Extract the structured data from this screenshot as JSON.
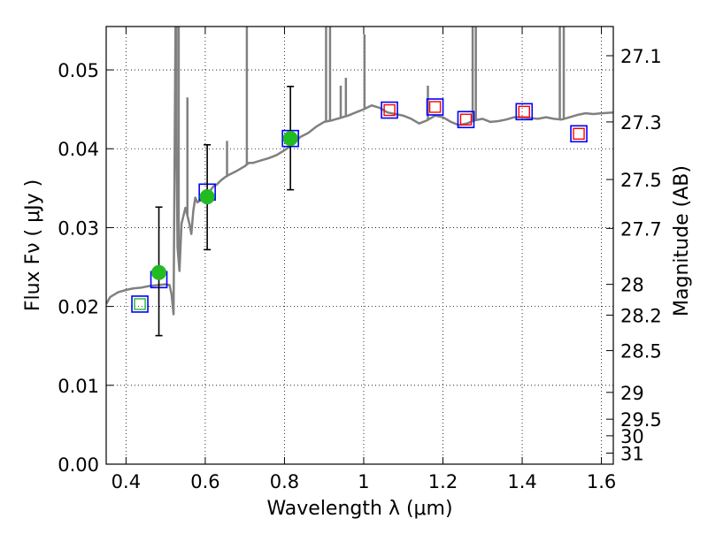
{
  "chart_data": {
    "type": "scatter",
    "title": "",
    "xlabel": "Wavelength  λ (μm)",
    "ylabel": "Flux  Fν  ( μJy )",
    "ylabel_right": "Magnitude (AB)",
    "xlim": [
      0.35,
      1.63
    ],
    "ylim": [
      0.0,
      0.0555
    ],
    "grid": true,
    "x_ticks": [
      0.4,
      0.6,
      0.8,
      1.0,
      1.2,
      1.4,
      1.6
    ],
    "x_tick_labels": [
      "0.4",
      "0.6",
      "0.8",
      "1",
      "1.2",
      "1.4",
      "1.6"
    ],
    "y_ticks": [
      0.0,
      0.01,
      0.02,
      0.03,
      0.04,
      0.05
    ],
    "y_tick_labels": [
      "0.00",
      "0.01",
      "0.02",
      "0.03",
      "0.04",
      "0.05"
    ],
    "mag_ticks": [
      {
        "label": "27.1",
        "flux": 0.0518
      },
      {
        "label": "27.3",
        "flux": 0.0434
      },
      {
        "label": "27.5",
        "flux": 0.0361
      },
      {
        "label": "27.7",
        "flux": 0.0299
      },
      {
        "label": "28",
        "flux": 0.0228
      },
      {
        "label": "28.2",
        "flux": 0.0189
      },
      {
        "label": "28.5",
        "flux": 0.0144
      },
      {
        "label": "29",
        "flux": 0.0091
      },
      {
        "label": "29.5",
        "flux": 0.0057
      },
      {
        "label": "30",
        "flux": 0.0036
      },
      {
        "label": "31",
        "flux": 0.0014
      }
    ],
    "series": [
      {
        "name": "SED template",
        "kind": "line",
        "color": "#808080",
        "x": [
          0.35,
          0.36,
          0.38,
          0.4,
          0.42,
          0.44,
          0.46,
          0.48,
          0.5,
          0.51,
          0.515,
          0.52,
          0.525,
          0.53,
          0.535,
          0.54,
          0.545,
          0.55,
          0.555,
          0.56,
          0.565,
          0.57,
          0.575,
          0.58,
          0.59,
          0.6,
          0.61,
          0.62,
          0.63,
          0.64,
          0.65,
          0.66,
          0.68,
          0.7,
          0.71,
          0.72,
          0.74,
          0.76,
          0.78,
          0.8,
          0.82,
          0.84,
          0.86,
          0.88,
          0.9,
          0.92,
          0.94,
          0.96,
          0.98,
          1.0,
          1.02,
          1.04,
          1.06,
          1.08,
          1.1,
          1.12,
          1.14,
          1.16,
          1.18,
          1.2,
          1.22,
          1.24,
          1.26,
          1.28,
          1.3,
          1.32,
          1.34,
          1.36,
          1.38,
          1.4,
          1.42,
          1.44,
          1.46,
          1.48,
          1.5,
          1.52,
          1.54,
          1.56,
          1.58,
          1.6,
          1.63
        ],
        "y": [
          0.0203,
          0.0212,
          0.0218,
          0.0221,
          0.0223,
          0.0224,
          0.0226,
          0.0227,
          0.0228,
          0.0227,
          0.0215,
          0.019,
          0.0555,
          0.0275,
          0.0245,
          0.0305,
          0.0315,
          0.0325,
          0.0315,
          0.0305,
          0.0292,
          0.0322,
          0.0338,
          0.0332,
          0.0335,
          0.0338,
          0.0345,
          0.0352,
          0.0355,
          0.036,
          0.0364,
          0.0367,
          0.0372,
          0.0378,
          0.0382,
          0.0382,
          0.0385,
          0.0388,
          0.0392,
          0.0398,
          0.0405,
          0.0415,
          0.042,
          0.0428,
          0.0434,
          0.0436,
          0.0439,
          0.0442,
          0.0446,
          0.045,
          0.0455,
          0.0452,
          0.0446,
          0.0444,
          0.0442,
          0.0438,
          0.0432,
          0.0436,
          0.0442,
          0.044,
          0.0434,
          0.043,
          0.0432,
          0.0436,
          0.0438,
          0.0434,
          0.0435,
          0.0437,
          0.044,
          0.044,
          0.0439,
          0.0438,
          0.044,
          0.0438,
          0.0437,
          0.044,
          0.0443,
          0.0445,
          0.0444,
          0.0445,
          0.0446
        ]
      },
      {
        "name": "model (blue squares)",
        "kind": "open-square",
        "color": "#0000ff",
        "x": [
          0.435,
          0.483,
          0.605,
          0.815,
          1.065,
          1.18,
          1.258,
          1.405,
          1.543
        ],
        "y": [
          0.0203,
          0.0234,
          0.0345,
          0.0413,
          0.0449,
          0.0453,
          0.0437,
          0.0447,
          0.0419
        ]
      },
      {
        "name": "observed (red squares)",
        "kind": "open-square",
        "color": "#ff0000",
        "x": [
          1.065,
          1.18,
          1.258,
          1.405,
          1.543
        ],
        "y": [
          0.0449,
          0.0453,
          0.0437,
          0.0447,
          0.0419
        ]
      },
      {
        "name": "observed (green points)",
        "kind": "point-with-error",
        "color": "#22bb22",
        "x": [
          0.483,
          0.605,
          0.815
        ],
        "y": [
          0.0243,
          0.0339,
          0.0413
        ],
        "yerr_low": [
          0.0163,
          0.0272,
          0.0348
        ],
        "yerr_high": [
          0.0326,
          0.0405,
          0.0479
        ]
      },
      {
        "name": "green square",
        "kind": "open-square",
        "color": "#22bb22",
        "x": [
          0.435
        ],
        "y": [
          0.0203
        ]
      }
    ],
    "emission_lines": [
      {
        "x": 0.527,
        "top": 0.0555
      },
      {
        "x": 0.533,
        "top": 0.0555
      },
      {
        "x": 0.555,
        "top": 0.0465
      },
      {
        "x": 0.705,
        "top": 0.0555
      },
      {
        "x": 0.655,
        "top": 0.041
      },
      {
        "x": 0.905,
        "top": 0.0555
      },
      {
        "x": 0.915,
        "top": 0.0555
      },
      {
        "x": 0.942,
        "top": 0.048
      },
      {
        "x": 0.955,
        "top": 0.049
      },
      {
        "x": 1.002,
        "top": 0.0545
      },
      {
        "x": 1.162,
        "top": 0.048
      },
      {
        "x": 1.275,
        "top": 0.0555
      },
      {
        "x": 1.283,
        "top": 0.0555
      },
      {
        "x": 1.495,
        "top": 0.0555
      },
      {
        "x": 1.505,
        "top": 0.0555
      }
    ]
  }
}
